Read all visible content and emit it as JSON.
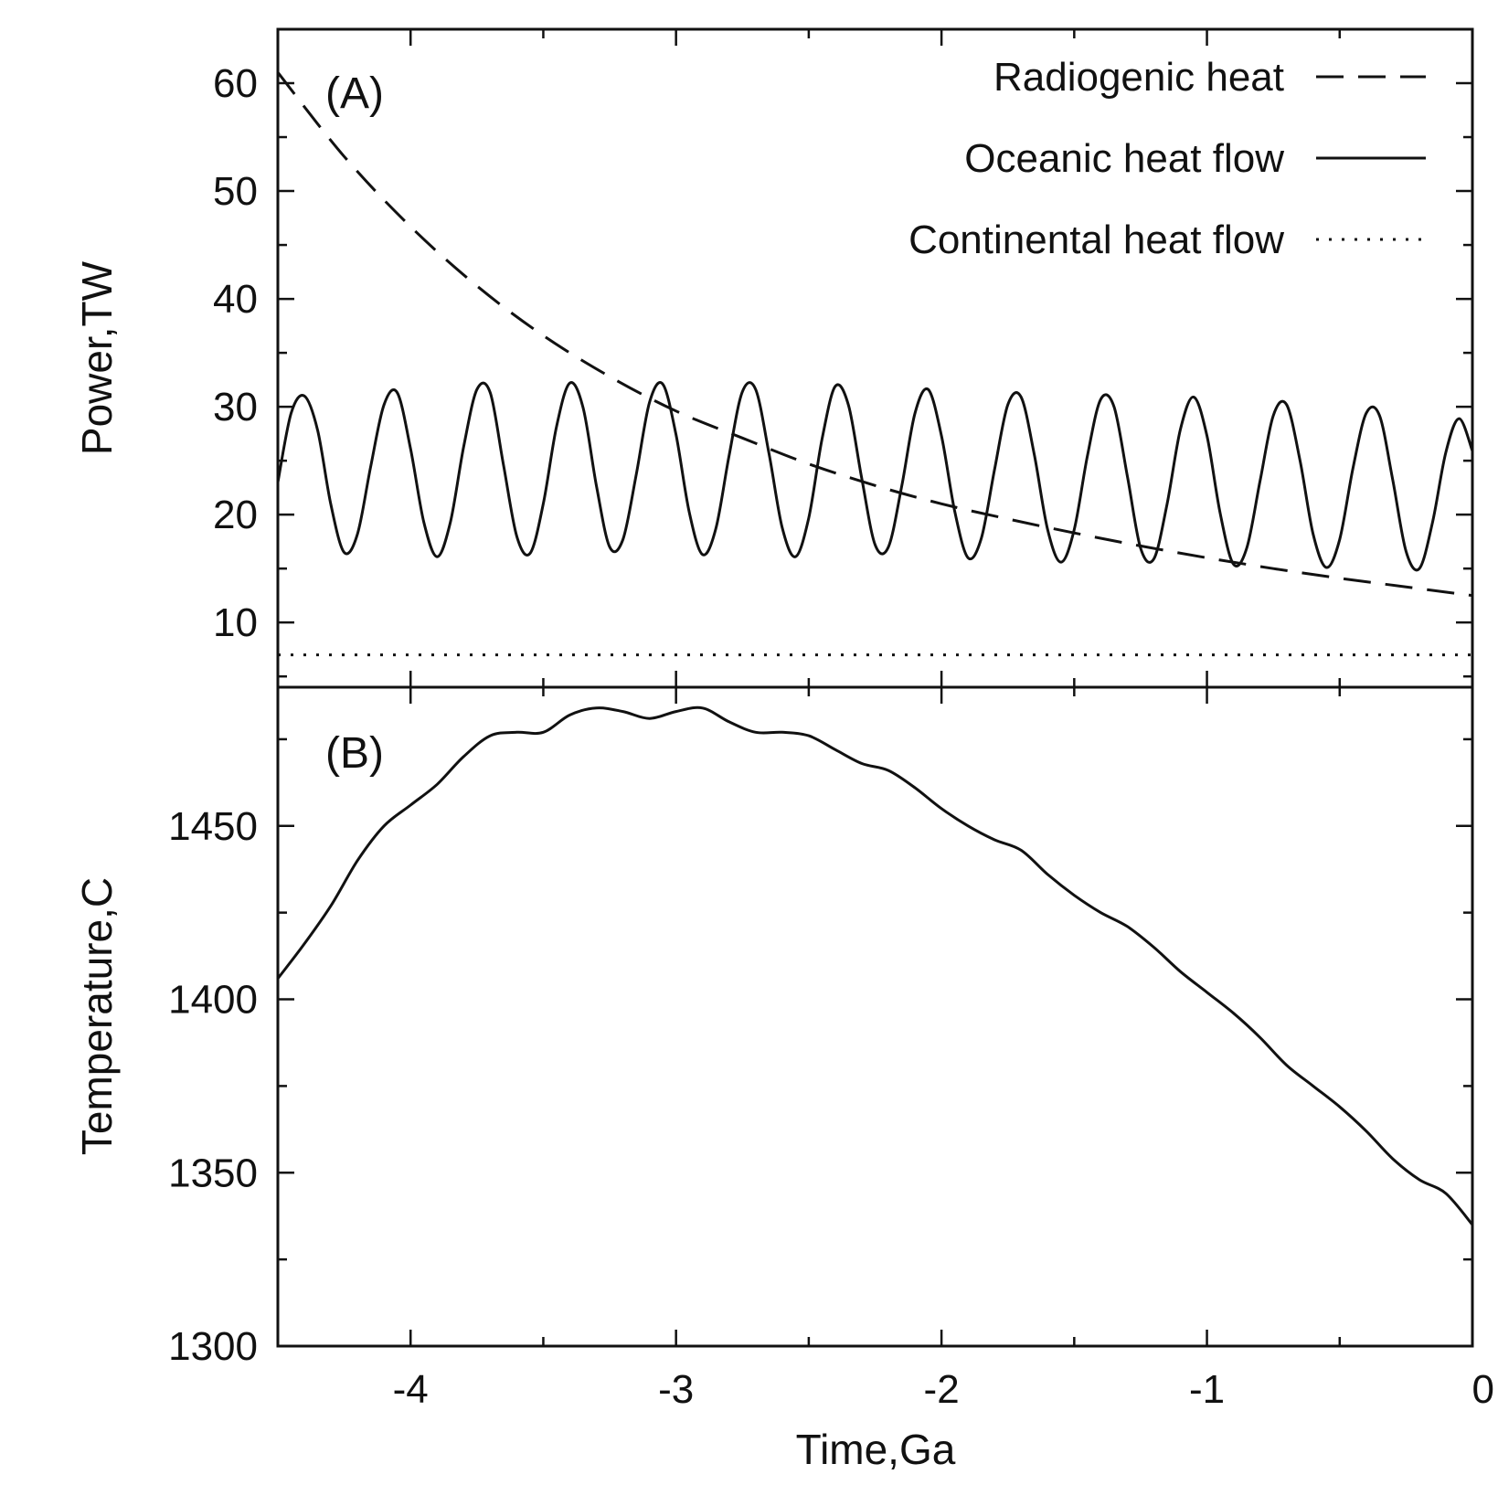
{
  "chart_data": [
    {
      "type": "line",
      "panel_label": "(A)",
      "xlabel": "",
      "ylabel": "Power,TW",
      "xlim": [
        -4.5,
        0
      ],
      "ylim": [
        4,
        65
      ],
      "yticks": [
        10,
        20,
        30,
        40,
        50,
        60
      ],
      "legend": {
        "placement": "top-right"
      },
      "series": [
        {
          "name": "Radiogenic heat",
          "style": "dashed",
          "x": [
            -4.5,
            -4.25,
            -4.0,
            -3.75,
            -3.5,
            -3.25,
            -3.0,
            -2.75,
            -2.5,
            -2.25,
            -2.0,
            -1.75,
            -1.5,
            -1.25,
            -1.0,
            -0.75,
            -0.5,
            -0.25,
            0.0
          ],
          "y": [
            61.0,
            53.2,
            46.7,
            41.2,
            36.6,
            32.8,
            29.6,
            27.1,
            24.7,
            22.7,
            21.0,
            19.6,
            18.3,
            17.1,
            16.0,
            15.0,
            14.1,
            13.3,
            12.5
          ]
        },
        {
          "name": "Oceanic heat flow",
          "style": "solid",
          "x": [
            -4.5,
            -4.45,
            -4.4,
            -4.35,
            -4.3,
            -4.25,
            -4.2,
            -4.15,
            -4.1,
            -4.05,
            -4.0,
            -3.95,
            -3.9,
            -3.85,
            -3.8,
            -3.75,
            -3.7,
            -3.65,
            -3.6,
            -3.55,
            -3.5,
            -3.45,
            -3.4,
            -3.35,
            -3.3,
            -3.25,
            -3.2,
            -3.15,
            -3.1,
            -3.05,
            -3.0,
            -2.95,
            -2.9,
            -2.85,
            -2.8,
            -2.75,
            -2.7,
            -2.65,
            -2.6,
            -2.55,
            -2.5,
            -2.45,
            -2.4,
            -2.35,
            -2.3,
            -2.25,
            -2.2,
            -2.15,
            -2.1,
            -2.05,
            -2.0,
            -1.95,
            -1.9,
            -1.85,
            -1.8,
            -1.75,
            -1.7,
            -1.65,
            -1.6,
            -1.55,
            -1.5,
            -1.45,
            -1.4,
            -1.35,
            -1.3,
            -1.25,
            -1.2,
            -1.15,
            -1.1,
            -1.05,
            -1.0,
            -0.95,
            -0.9,
            -0.85,
            -0.8,
            -0.75,
            -0.7,
            -0.65,
            -0.6,
            -0.55,
            -0.5,
            -0.45,
            -0.4,
            -0.35,
            -0.3,
            -0.25,
            -0.2,
            -0.15,
            -0.1,
            -0.05,
            0.0
          ],
          "y": [
            23.0,
            29.4,
            31.0,
            27.8,
            20.9,
            16.5,
            18.2,
            24.5,
            30.2,
            31.3,
            26.1,
            19.3,
            16.1,
            19.3,
            26.3,
            31.6,
            31.3,
            24.6,
            18.0,
            16.4,
            21.0,
            28.2,
            32.2,
            29.9,
            22.7,
            17.0,
            17.7,
            23.7,
            30.4,
            32.1,
            27.4,
            20.2,
            16.3,
            18.7,
            25.5,
            31.4,
            31.6,
            25.7,
            18.8,
            16.1,
            19.7,
            27.0,
            31.9,
            30.1,
            23.3,
            17.2,
            17.0,
            22.6,
            29.4,
            31.6,
            27.3,
            20.3,
            16.0,
            17.8,
            24.2,
            30.2,
            30.9,
            25.5,
            18.6,
            15.6,
            18.6,
            25.5,
            30.7,
            30.0,
            23.6,
            16.9,
            15.9,
            21.0,
            27.9,
            30.9,
            27.3,
            20.1,
            15.4,
            16.9,
            23.1,
            29.2,
            30.2,
            25.1,
            18.2,
            15.1,
            17.7,
            24.3,
            29.4,
            29.2,
            23.2,
            16.6,
            15.0,
            19.3,
            25.8,
            28.9,
            25.9
          ]
        },
        {
          "name": "Continental heat flow",
          "style": "dotted",
          "x": [
            -4.5,
            0.0
          ],
          "y": [
            7.0,
            7.0
          ]
        }
      ]
    },
    {
      "type": "line",
      "panel_label": "(B)",
      "xlabel": "Time,Ga",
      "ylabel": "Temperature,C",
      "xlim": [
        -4.5,
        0
      ],
      "ylim": [
        1300,
        1490
      ],
      "xticks": [
        -4,
        -3,
        -2,
        -1,
        0
      ],
      "yticks": [
        1300,
        1350,
        1400,
        1450
      ],
      "series": [
        {
          "style": "solid",
          "x": [
            -4.5,
            -4.4,
            -4.3,
            -4.2,
            -4.1,
            -4.0,
            -3.9,
            -3.8,
            -3.7,
            -3.6,
            -3.5,
            -3.4,
            -3.3,
            -3.2,
            -3.1,
            -3.0,
            -2.9,
            -2.8,
            -2.7,
            -2.6,
            -2.5,
            -2.4,
            -2.3,
            -2.2,
            -2.1,
            -2.0,
            -1.9,
            -1.8,
            -1.7,
            -1.6,
            -1.5,
            -1.4,
            -1.3,
            -1.2,
            -1.1,
            -1.0,
            -0.9,
            -0.8,
            -0.7,
            -0.6,
            -0.5,
            -0.4,
            -0.3,
            -0.2,
            -0.1,
            0.0
          ],
          "y": [
            1406,
            1416,
            1427,
            1440,
            1450,
            1456,
            1462,
            1470,
            1476,
            1477,
            1477,
            1482,
            1484,
            1483,
            1481,
            1483,
            1484,
            1480,
            1477,
            1477,
            1476,
            1472,
            1468,
            1466,
            1461,
            1455,
            1450,
            1446,
            1443,
            1436,
            1430,
            1425,
            1421,
            1415,
            1408,
            1402,
            1396,
            1389,
            1381,
            1375,
            1369,
            1362,
            1354,
            1348,
            1344,
            1335
          ]
        }
      ]
    }
  ]
}
